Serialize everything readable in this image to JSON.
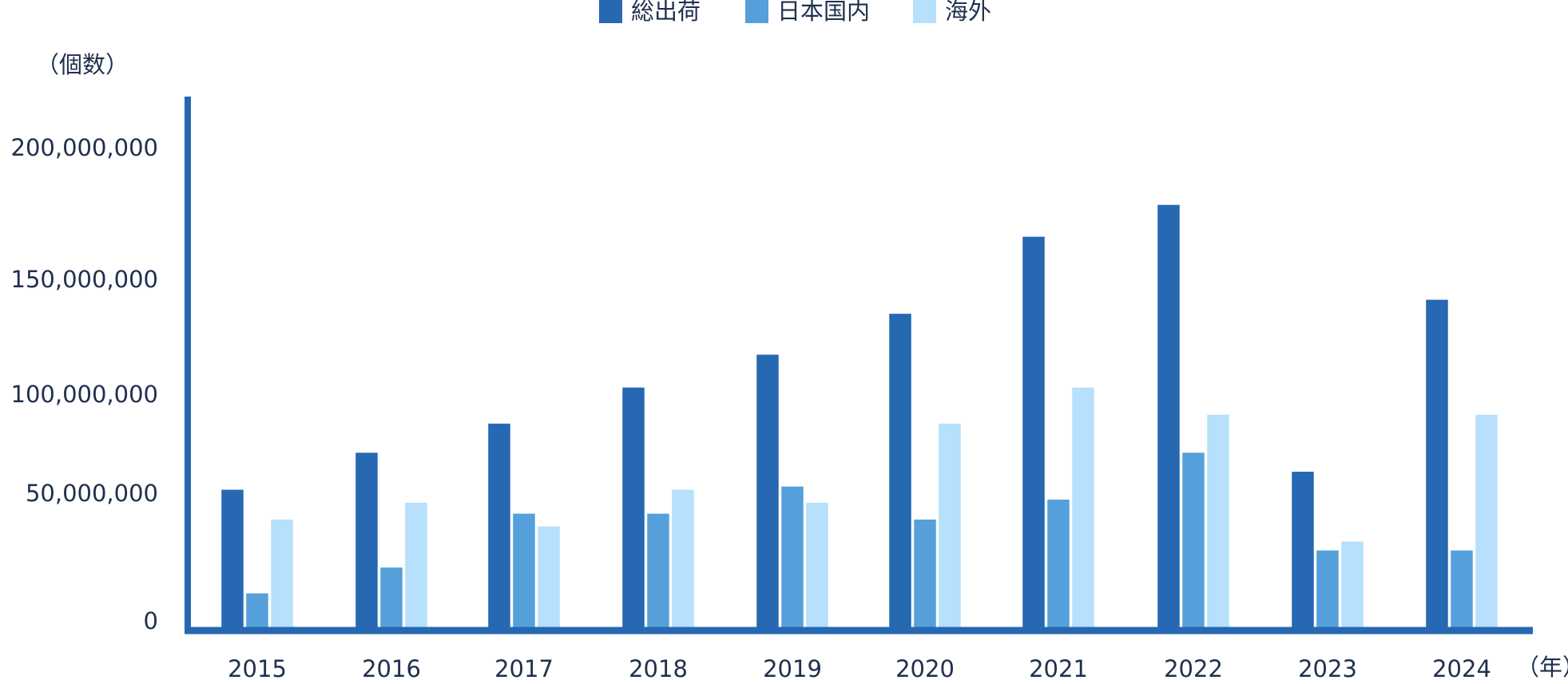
{
  "chart_data": {
    "type": "bar",
    "y_unit_label": "（個数）",
    "x_unit_label": "（年）",
    "categories": [
      "2015",
      "2016",
      "2017",
      "2018",
      "2019",
      "2020",
      "2021",
      "2022",
      "2023",
      "2024"
    ],
    "series": [
      {
        "name": "総出荷",
        "color": "#2668b1",
        "values": [
          55000000,
          73700000,
          88400000,
          105700000,
          120000000,
          137800000,
          168600000,
          180700000,
          64100000,
          143900000
        ]
      },
      {
        "name": "日本国内",
        "color": "#55a0da",
        "values": [
          13300000,
          23400000,
          44500000,
          44500000,
          56600000,
          42200000,
          50000000,
          73700000,
          30100000,
          30100000
        ]
      },
      {
        "name": "海外",
        "color": "#b6e0fc",
        "values": [
          42200000,
          48800000,
          39500000,
          55000000,
          48800000,
          88400000,
          105700000,
          92900000,
          33600000,
          92900000
        ]
      }
    ],
    "ylim": [
      0,
      221600000
    ],
    "yticks": [
      0,
      {
        "value": 50000000,
        "label": "50,000,000"
      },
      {
        "value": 100000000,
        "label": "100,000,000"
      },
      {
        "value": 150000000,
        "label": "150,000,000"
      },
      {
        "value": 200000000,
        "label": "200,000,000"
      }
    ],
    "grid": false,
    "legend": "top"
  }
}
